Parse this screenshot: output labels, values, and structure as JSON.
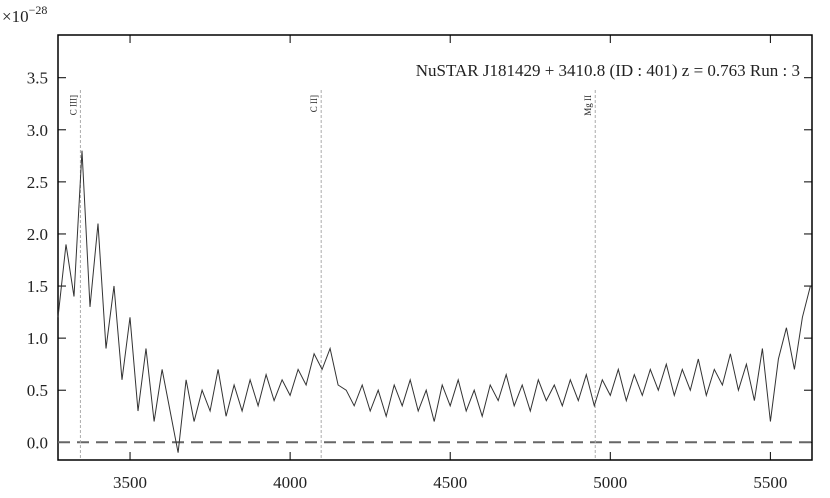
{
  "chart_data": {
    "type": "line",
    "title": "NuSTAR J181429 + 3410.8 (ID : 401)   z = 0.763   Run : 3",
    "y_multiplier": {
      "base": "×10",
      "exponent": "−28"
    },
    "xlim": [
      3275,
      5630
    ],
    "ylim": [
      -0.17,
      3.91
    ],
    "xticks": [
      3500,
      4000,
      4500,
      5000,
      5500
    ],
    "yticks": [
      {
        "value": 0,
        "label": "0.0"
      },
      {
        "value": 0.5,
        "label": "0.5"
      },
      {
        "value": 1,
        "label": "1.0"
      },
      {
        "value": 1.5,
        "label": "1.5"
      },
      {
        "value": 2,
        "label": "2.0"
      },
      {
        "value": 2.5,
        "label": "2.5"
      },
      {
        "value": 3,
        "label": "3.0"
      },
      {
        "value": 3.5,
        "label": "3.5"
      }
    ],
    "zero_line": 0,
    "lines": [
      {
        "x": 3345,
        "label": "C III]"
      },
      {
        "x": 4097,
        "label": "C II]"
      },
      {
        "x": 4953,
        "label": "Mg II"
      }
    ],
    "x": [
      3275,
      3300,
      3325,
      3350,
      3375,
      3400,
      3425,
      3450,
      3475,
      3500,
      3525,
      3550,
      3575,
      3600,
      3625,
      3650,
      3675,
      3700,
      3725,
      3750,
      3775,
      3800,
      3825,
      3850,
      3875,
      3900,
      3925,
      3950,
      3975,
      4000,
      4025,
      4050,
      4075,
      4100,
      4125,
      4150,
      4175,
      4200,
      4225,
      4250,
      4275,
      4300,
      4325,
      4350,
      4375,
      4400,
      4425,
      4450,
      4475,
      4500,
      4525,
      4550,
      4575,
      4600,
      4625,
      4650,
      4675,
      4700,
      4725,
      4750,
      4775,
      4800,
      4825,
      4850,
      4875,
      4900,
      4925,
      4950,
      4975,
      5000,
      5025,
      5050,
      5075,
      5100,
      5125,
      5150,
      5175,
      5200,
      5225,
      5250,
      5275,
      5300,
      5325,
      5350,
      5375,
      5400,
      5425,
      5450,
      5475,
      5500,
      5525,
      5550,
      5575,
      5600,
      5625
    ],
    "series": [
      {
        "color": "#333333",
        "values": [
          1.2,
          1.9,
          1.4,
          2.8,
          1.3,
          2.1,
          0.9,
          1.5,
          0.6,
          1.2,
          0.3,
          0.9,
          0.2,
          0.7,
          0.3,
          -0.1,
          0.6,
          0.2,
          0.5,
          0.3,
          0.7,
          0.25,
          0.55,
          0.3,
          0.6,
          0.35,
          0.65,
          0.4,
          0.6,
          0.45,
          0.7,
          0.55,
          0.85,
          0.7,
          0.9,
          0.55,
          0.5,
          0.35,
          0.55,
          0.3,
          0.5,
          0.25,
          0.55,
          0.35,
          0.6,
          0.3,
          0.5,
          0.2,
          0.55,
          0.35,
          0.6,
          0.3,
          0.5,
          0.25,
          0.55,
          0.4,
          0.65,
          0.35,
          0.55,
          0.3,
          0.6,
          0.4,
          0.55,
          0.35,
          0.6,
          0.4,
          0.65,
          0.35,
          0.6,
          0.45,
          0.7,
          0.4,
          0.65,
          0.45,
          0.7,
          0.5,
          0.75,
          0.45,
          0.7,
          0.5,
          0.8,
          0.45,
          0.7,
          0.55,
          0.85,
          0.5,
          0.75,
          0.4,
          0.9,
          0.2,
          0.8,
          1.1,
          0.7,
          1.2,
          1.5
        ]
      }
    ]
  }
}
